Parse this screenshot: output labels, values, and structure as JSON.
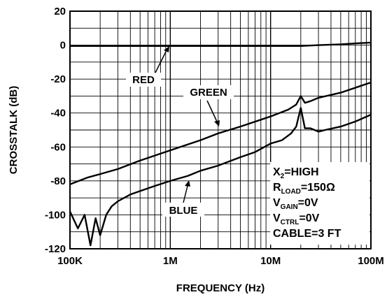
{
  "chart_data": {
    "type": "line",
    "title": "",
    "xlabel": "FREQUENCY (Hz)",
    "ylabel": "CROSSTALK (dB)",
    "xscale": "log",
    "xlim": [
      100000,
      100000000
    ],
    "ylim": [
      -120,
      20
    ],
    "grid": true,
    "x_tick_labels": [
      "100K",
      "1M",
      "10M",
      "100M"
    ],
    "x_tick_values": [
      100000,
      1000000,
      10000000,
      100000000
    ],
    "y_tick_labels": [
      "20",
      "0",
      "-20",
      "-40",
      "-60",
      "-80",
      "-100",
      "-120"
    ],
    "y_tick_values": [
      20,
      0,
      -20,
      -40,
      -60,
      -80,
      -100,
      -120
    ],
    "series": [
      {
        "name": "RED",
        "x": [
          100000,
          300000,
          1000000,
          3000000,
          10000000,
          20000000,
          30000000,
          50000000,
          70000000,
          100000000
        ],
        "y": [
          -0.5,
          -0.5,
          -0.5,
          -0.5,
          -0.5,
          -0.5,
          0,
          0.5,
          1,
          1.5
        ]
      },
      {
        "name": "GREEN",
        "x": [
          100000,
          150000,
          200000,
          300000,
          500000,
          1000000,
          2000000,
          3000000,
          5000000,
          10000000,
          15000000,
          18000000,
          20000000,
          22000000,
          25000000,
          30000000,
          50000000,
          100000000
        ],
        "y": [
          -82,
          -78,
          -76,
          -73,
          -68,
          -62,
          -56,
          -52,
          -48,
          -42,
          -38,
          -35,
          -30,
          -34,
          -33,
          -31,
          -28,
          -22
        ]
      },
      {
        "name": "BLUE",
        "x": [
          100000,
          120000,
          140000,
          160000,
          180000,
          200000,
          230000,
          260000,
          300000,
          400000,
          500000,
          700000,
          1000000,
          1500000,
          2000000,
          3000000,
          5000000,
          7000000,
          10000000,
          13000000,
          16000000,
          18000000,
          20000000,
          22000000,
          25000000,
          30000000,
          35000000,
          50000000,
          70000000,
          100000000
        ],
        "y": [
          -98,
          -108,
          -100,
          -118,
          -102,
          -112,
          -100,
          -95,
          -92,
          -88,
          -86,
          -83,
          -80,
          -77,
          -74,
          -71,
          -66,
          -63,
          -58,
          -56,
          -52,
          -48,
          -37,
          -49,
          -49,
          -51,
          -50,
          -48,
          -45,
          -41
        ]
      }
    ],
    "annotations": [
      "RED",
      "GREEN",
      "BLUE"
    ],
    "conditions": [
      {
        "main": "X",
        "sub": "2",
        "rest": "=HIGH"
      },
      {
        "main": "R",
        "sub": "LOAD",
        "rest": "=150Ω"
      },
      {
        "main": "V",
        "sub": "GAIN",
        "rest": "=0V"
      },
      {
        "main": "V",
        "sub": "CTRL",
        "rest": "=0V"
      },
      {
        "main": "CABLE=3 FT",
        "sub": "",
        "rest": ""
      }
    ]
  }
}
